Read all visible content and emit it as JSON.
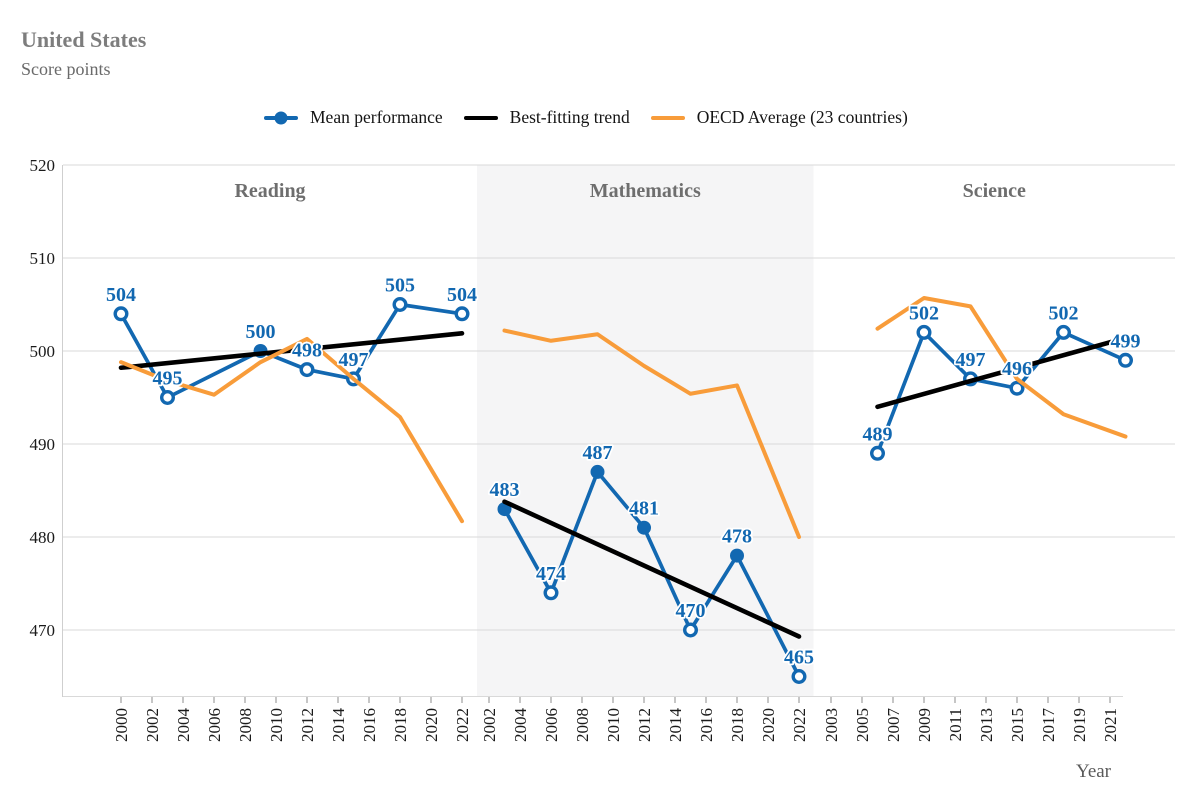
{
  "header": {
    "title": "United States",
    "subtitle": "Score points"
  },
  "legend": {
    "items": [
      {
        "label": "Mean performance",
        "swatch": "line-with-dot",
        "color": "#1268B1"
      },
      {
        "label": "Best-fitting trend",
        "swatch": "line",
        "color": "#000000"
      },
      {
        "label": "OECD Average (23 countries)",
        "swatch": "line",
        "color": "#F89C3A"
      }
    ]
  },
  "chart_data": {
    "type": "line",
    "title": "United States",
    "ylabel": "Score points",
    "xlabel": "Year",
    "ylim": [
      462,
      520
    ],
    "yticks": [
      520,
      510,
      500,
      490,
      480,
      470
    ],
    "grid": "horizontal",
    "legend_position": "top",
    "colors": {
      "mean": "#1268B1",
      "trend": "#000000",
      "oecd": "#F89C3A",
      "grid": "#D9D9D9",
      "spine": "#CFCFCF",
      "tick": "#8C8C8C",
      "band": "#F5F5F6",
      "panel_title": "#6E6E6E"
    },
    "panels": [
      {
        "subject": "Reading",
        "shaded": false,
        "tick_years": [
          2000,
          2002,
          2004,
          2006,
          2008,
          2010,
          2012,
          2014,
          2016,
          2018,
          2020,
          2022
        ],
        "mean_performance": {
          "years": [
            2000,
            2003,
            2009,
            2012,
            2015,
            2018,
            2022
          ],
          "scores": [
            504,
            495,
            500,
            498,
            497,
            505,
            504
          ],
          "filled_markers": [
            false,
            false,
            true,
            false,
            false,
            false,
            false
          ]
        },
        "best_fitting_trend": {
          "start_year": 2000,
          "start_score": 498.2,
          "end_year": 2022,
          "end_score": 501.9
        },
        "oecd_average": {
          "years": [
            2000,
            2003,
            2006,
            2009,
            2012,
            2015,
            2018,
            2022
          ],
          "scores": [
            498.8,
            496.8,
            495.3,
            498.8,
            501.3,
            497.0,
            492.9,
            481.7
          ]
        }
      },
      {
        "subject": "Mathematics",
        "shaded": true,
        "tick_years": [
          2002,
          2004,
          2006,
          2008,
          2010,
          2012,
          2014,
          2016,
          2018,
          2020,
          2022
        ],
        "mean_performance": {
          "years": [
            2003,
            2006,
            2009,
            2012,
            2015,
            2018,
            2022
          ],
          "scores": [
            483,
            474,
            487,
            481,
            470,
            478,
            465
          ],
          "filled_markers": [
            true,
            false,
            true,
            true,
            false,
            true,
            false
          ]
        },
        "best_fitting_trend": {
          "start_year": 2003,
          "start_score": 483.8,
          "end_year": 2022,
          "end_score": 469.3
        },
        "oecd_average": {
          "years": [
            2003,
            2006,
            2009,
            2012,
            2015,
            2018,
            2022
          ],
          "scores": [
            502.2,
            501.1,
            501.8,
            498.4,
            495.4,
            496.3,
            480.0
          ]
        }
      },
      {
        "subject": "Science",
        "shaded": false,
        "tick_years": [
          2003,
          2005,
          2007,
          2009,
          2011,
          2013,
          2015,
          2017,
          2019,
          2021
        ],
        "mean_performance": {
          "years": [
            2006,
            2009,
            2012,
            2015,
            2018,
            2022
          ],
          "scores": [
            489,
            502,
            497,
            496,
            502,
            499
          ],
          "filled_markers": [
            false,
            false,
            false,
            false,
            false,
            false
          ]
        },
        "best_fitting_trend": {
          "start_year": 2006,
          "start_score": 494.0,
          "end_year": 2022,
          "end_score": 501.4
        },
        "oecd_average": {
          "years": [
            2006,
            2009,
            2012,
            2015,
            2018,
            2022
          ],
          "scores": [
            502.4,
            505.7,
            504.8,
            497.0,
            493.2,
            490.8
          ]
        }
      }
    ]
  }
}
